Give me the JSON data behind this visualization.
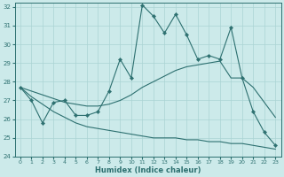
{
  "xlabel": "Humidex (Indice chaleur)",
  "background_color": "#cceaea",
  "grid_color": "#aad4d4",
  "line_color": "#2d7070",
  "xlim": [
    -0.5,
    23.5
  ],
  "ylim": [
    24,
    32.2
  ],
  "yticks": [
    24,
    25,
    26,
    27,
    28,
    29,
    30,
    31,
    32
  ],
  "xticks": [
    0,
    1,
    2,
    3,
    4,
    5,
    6,
    7,
    8,
    9,
    10,
    11,
    12,
    13,
    14,
    15,
    16,
    17,
    18,
    19,
    20,
    21,
    22,
    23
  ],
  "line1_x": [
    0,
    1,
    2,
    3,
    4,
    5,
    6,
    7,
    8,
    9,
    10,
    11,
    12,
    13,
    14,
    15,
    16,
    17,
    18,
    19,
    20,
    21,
    22,
    23
  ],
  "line1_y": [
    27.7,
    27.0,
    25.8,
    26.9,
    27.0,
    26.2,
    26.2,
    26.4,
    27.5,
    29.2,
    28.2,
    32.1,
    31.5,
    30.6,
    31.6,
    30.5,
    29.2,
    29.4,
    29.2,
    30.9,
    28.2,
    26.4,
    25.3,
    24.6
  ],
  "line2_x": [
    0,
    1,
    2,
    3,
    4,
    5,
    6,
    7,
    8,
    9,
    10,
    11,
    12,
    13,
    14,
    15,
    16,
    17,
    18,
    19,
    20,
    21,
    22,
    23
  ],
  "line2_y": [
    27.7,
    27.5,
    27.3,
    27.1,
    26.9,
    26.8,
    26.7,
    26.7,
    26.8,
    27.0,
    27.3,
    27.7,
    28.0,
    28.3,
    28.6,
    28.8,
    28.9,
    29.0,
    29.1,
    28.2,
    28.2,
    27.7,
    26.9,
    26.1
  ],
  "line3_x": [
    0,
    1,
    2,
    3,
    4,
    5,
    6,
    7,
    8,
    9,
    10,
    11,
    12,
    13,
    14,
    15,
    16,
    17,
    18,
    19,
    20,
    21,
    22,
    23
  ],
  "line3_y": [
    27.7,
    27.2,
    26.8,
    26.4,
    26.1,
    25.8,
    25.6,
    25.5,
    25.4,
    25.3,
    25.2,
    25.1,
    25.0,
    25.0,
    25.0,
    24.9,
    24.9,
    24.8,
    24.8,
    24.7,
    24.7,
    24.6,
    24.5,
    24.4
  ]
}
